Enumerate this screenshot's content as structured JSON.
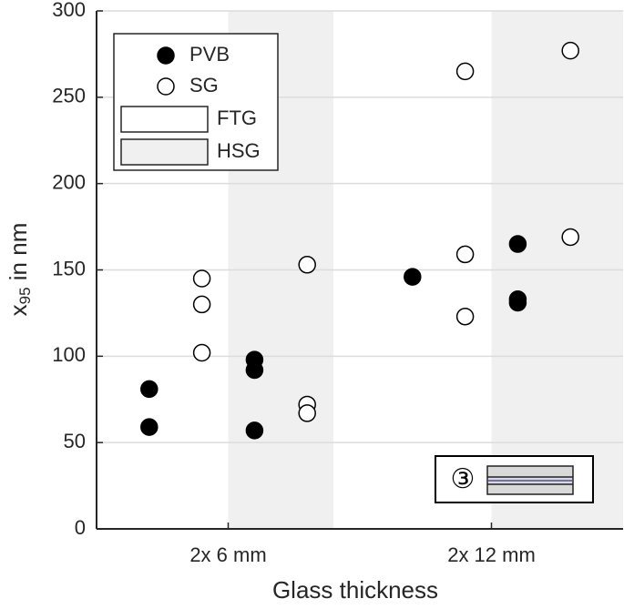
{
  "chart_data": {
    "type": "scatter",
    "xlabel": "Glass thickness",
    "ylabel": [
      "x",
      "95",
      " in nm"
    ],
    "xlim": [
      0,
      4
    ],
    "xticks": [
      {
        "value": 1,
        "label": "2x 6 mm"
      },
      {
        "value": 3,
        "label": "2x 12 mm"
      }
    ],
    "ylim": [
      0,
      300
    ],
    "yticks": [
      0,
      50,
      100,
      150,
      200,
      250,
      300
    ],
    "grid": true,
    "legend": "upper left",
    "regions": [
      {
        "name": "FTG",
        "color": "#ffffff",
        "spans": []
      },
      {
        "name": "HSG",
        "color": "#f0f0f0",
        "spans": [
          [
            1,
            1.8
          ],
          [
            3,
            4
          ]
        ]
      }
    ],
    "series": [
      {
        "name": "PVB",
        "color": "#000000",
        "filled": true,
        "x": [
          0.4,
          0.4,
          1.2,
          1.2,
          1.2,
          2.4,
          3.2,
          3.2,
          3.2
        ],
        "values": [
          81,
          59,
          98,
          92,
          57,
          146,
          165,
          133,
          131
        ]
      },
      {
        "name": "SG",
        "color": "#000000",
        "filled": false,
        "x": [
          0.8,
          0.8,
          0.8,
          1.6,
          1.6,
          1.6,
          2.8,
          2.8,
          2.8,
          3.6,
          3.6
        ],
        "values": [
          145,
          130,
          102,
          153,
          72,
          67,
          265,
          159,
          123,
          277,
          169
        ]
      }
    ],
    "annotation": "③"
  }
}
